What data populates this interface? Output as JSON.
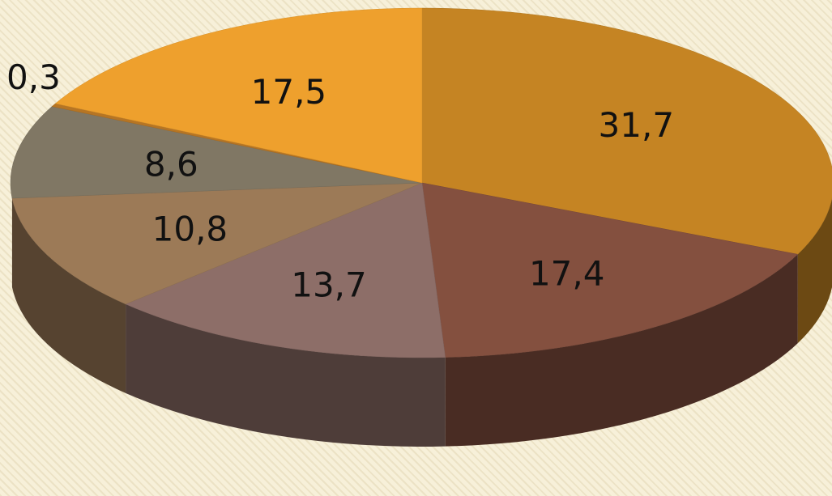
{
  "chart_data": {
    "type": "pie",
    "style": "3d",
    "title": "",
    "legend": "none",
    "slices": [
      {
        "label": "31,7",
        "value": 31.7,
        "color": "#c58423"
      },
      {
        "label": "17,4",
        "value": 17.4,
        "color": "#84503f"
      },
      {
        "label": "13,7",
        "value": 13.7,
        "color": "#8d6e68"
      },
      {
        "label": "10,8",
        "value": 10.8,
        "color": "#9c7a57"
      },
      {
        "label": "8,6",
        "value": 8.6,
        "color": "#807764"
      },
      {
        "label": "0,3",
        "value": 0.3,
        "color": "#b67524"
      },
      {
        "label": "17,5",
        "value": 17.5,
        "color": "#eea02d"
      }
    ]
  }
}
